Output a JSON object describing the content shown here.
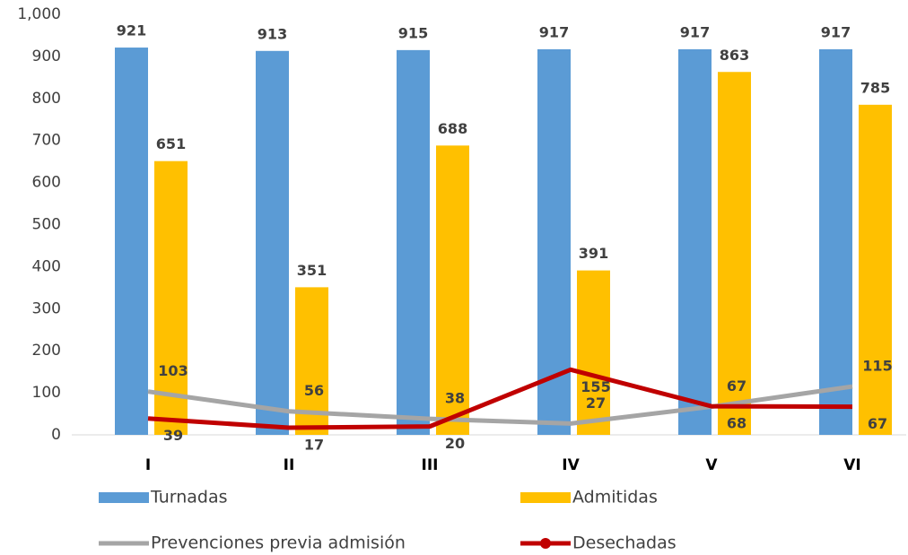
{
  "chart_data": {
    "type": "combo",
    "categories": [
      "I",
      "II",
      "III",
      "IV",
      "V",
      "VI"
    ],
    "series": [
      {
        "name": "Turnadas",
        "type": "bar",
        "color": "#5b9bd5",
        "values": [
          921,
          913,
          915,
          917,
          917,
          917
        ]
      },
      {
        "name": "Admitidas",
        "type": "bar",
        "color": "#ffc000",
        "values": [
          651,
          351,
          688,
          391,
          863,
          785
        ]
      },
      {
        "name": "Prevenciones previa admisión",
        "type": "line",
        "color": "#a5a5a5",
        "values": [
          103,
          56,
          38,
          27,
          67,
          115
        ]
      },
      {
        "name": "Desechadas",
        "type": "line",
        "color": "#c00000",
        "values": [
          39,
          17,
          20,
          155,
          68,
          67
        ]
      }
    ],
    "ylim": [
      0,
      1000
    ],
    "yticks": [
      0,
      100,
      200,
      300,
      400,
      500,
      600,
      700,
      800,
      900,
      {
        "value": 1000,
        "label": "1,000"
      }
    ],
    "grid": false
  }
}
